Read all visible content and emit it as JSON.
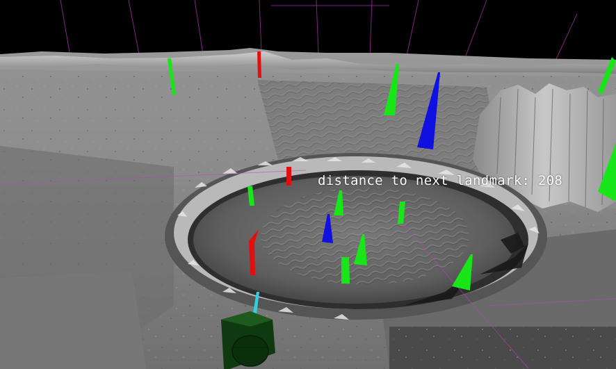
{
  "hud": {
    "distance_label": "distance to next landmark: 208",
    "text_color": "#ffffff"
  },
  "scene": {
    "description_colors": {
      "sky": "#000000",
      "terrain_light": "#b8b8b8",
      "terrain_mid": "#8a8a8a",
      "terrain_dark": "#4a4a4a",
      "grid_lines": "#c040c0",
      "landmark_green": "#19e619",
      "landmark_blue": "#1010e0",
      "landmark_red": "#e01010",
      "marker_cyan": "#30d0e0",
      "avatar_green": "#0f3a0f"
    },
    "markers": [
      {
        "id": "marker-green-1",
        "color": "green",
        "shape": "bar"
      },
      {
        "id": "marker-red-1",
        "color": "red",
        "shape": "bar"
      },
      {
        "id": "marker-green-2",
        "color": "green",
        "shape": "cone"
      },
      {
        "id": "marker-blue-1",
        "color": "blue",
        "shape": "cone"
      },
      {
        "id": "marker-green-3",
        "color": "green",
        "shape": "bar"
      },
      {
        "id": "marker-green-4",
        "color": "green",
        "shape": "cone"
      },
      {
        "id": "marker-red-2",
        "color": "red",
        "shape": "bar"
      },
      {
        "id": "marker-green-5",
        "color": "green",
        "shape": "bar"
      },
      {
        "id": "marker-green-6",
        "color": "green",
        "shape": "cone"
      },
      {
        "id": "marker-green-7",
        "color": "green",
        "shape": "bar"
      },
      {
        "id": "marker-blue-2",
        "color": "blue",
        "shape": "cone"
      },
      {
        "id": "marker-red-3",
        "color": "red",
        "shape": "flag"
      },
      {
        "id": "marker-green-8",
        "color": "green",
        "shape": "cone"
      },
      {
        "id": "marker-green-9",
        "color": "green",
        "shape": "bar"
      },
      {
        "id": "marker-green-10",
        "color": "green",
        "shape": "cone"
      },
      {
        "id": "marker-green-11",
        "color": "green",
        "shape": "cone"
      },
      {
        "id": "marker-cyan-1",
        "color": "cyan",
        "shape": "bar"
      }
    ]
  }
}
